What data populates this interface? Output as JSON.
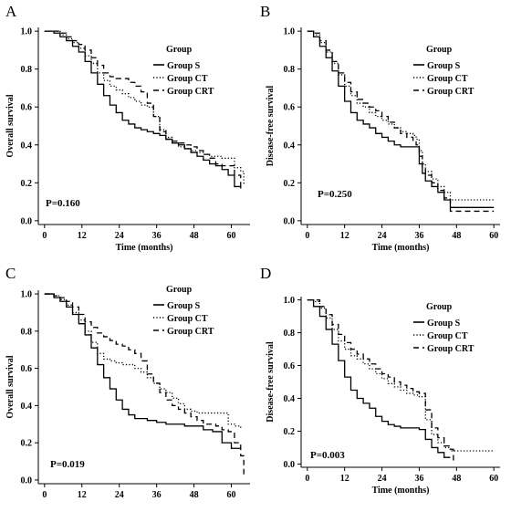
{
  "colors": {
    "line": "#000000",
    "background": "#ffffff"
  },
  "chart_data": [
    {
      "panel": "A",
      "type": "line",
      "xlabel": "Time (months)",
      "ylabel": "Overall survival",
      "xticks": [
        0,
        12,
        24,
        36,
        48,
        60
      ],
      "yticks": [
        "0.0",
        "0.2",
        "0.4",
        "0.6",
        "0.8",
        "1.0"
      ],
      "xlim": [
        -2,
        66
      ],
      "ylim": [
        -0.02,
        1.02
      ],
      "legend_title": "Group",
      "legend_placement": "top-right",
      "p_value": "P=0.160",
      "series": [
        {
          "name": "Group S",
          "style": "solid",
          "x": [
            0,
            3,
            5,
            7,
            9,
            11,
            13,
            15,
            17,
            19,
            21,
            23,
            25,
            27,
            29,
            31,
            33,
            35,
            37,
            39,
            41,
            43,
            45,
            47,
            49,
            51,
            53,
            55,
            57,
            59,
            61,
            63
          ],
          "y": [
            1.0,
            0.99,
            0.97,
            0.95,
            0.92,
            0.89,
            0.84,
            0.78,
            0.72,
            0.66,
            0.61,
            0.57,
            0.53,
            0.51,
            0.49,
            0.48,
            0.47,
            0.46,
            0.45,
            0.43,
            0.41,
            0.4,
            0.38,
            0.36,
            0.34,
            0.32,
            0.3,
            0.29,
            0.27,
            0.24,
            0.18,
            0.17
          ]
        },
        {
          "name": "Group CT",
          "style": "dotted",
          "x": [
            0,
            3,
            5,
            7,
            9,
            11,
            13,
            15,
            17,
            19,
            21,
            23,
            25,
            27,
            29,
            31,
            33,
            35,
            37,
            39,
            41,
            43,
            45,
            47,
            49,
            51,
            53,
            55,
            57,
            59,
            61,
            63,
            64
          ],
          "y": [
            1.0,
            1.0,
            0.98,
            0.96,
            0.94,
            0.91,
            0.87,
            0.83,
            0.78,
            0.74,
            0.71,
            0.69,
            0.67,
            0.65,
            0.63,
            0.61,
            0.6,
            0.55,
            0.48,
            0.44,
            0.41,
            0.39,
            0.38,
            0.37,
            0.36,
            0.35,
            0.34,
            0.34,
            0.33,
            0.33,
            0.28,
            0.26,
            0.19
          ]
        },
        {
          "name": "Group CRT",
          "style": "dashed",
          "x": [
            0,
            3,
            5,
            7,
            9,
            11,
            13,
            15,
            17,
            19,
            21,
            23,
            25,
            27,
            29,
            31,
            33,
            35,
            37,
            39,
            41,
            43,
            45,
            47,
            49,
            51,
            53,
            55,
            57,
            59,
            61,
            63
          ],
          "y": [
            1.0,
            1.0,
            0.99,
            0.97,
            0.95,
            0.93,
            0.9,
            0.86,
            0.82,
            0.78,
            0.76,
            0.75,
            0.75,
            0.73,
            0.71,
            0.68,
            0.62,
            0.55,
            0.47,
            0.43,
            0.42,
            0.41,
            0.4,
            0.39,
            0.37,
            0.35,
            0.33,
            0.3,
            0.29,
            0.29,
            0.24,
            0.17
          ]
        }
      ]
    },
    {
      "panel": "B",
      "type": "line",
      "xlabel": "Time (months)",
      "ylabel": "Disease-free survival",
      "xticks": [
        0,
        12,
        24,
        36,
        48,
        60
      ],
      "yticks": [
        "0.0",
        "0.2",
        "0.4",
        "0.6",
        "0.8",
        "1.0"
      ],
      "xlim": [
        -2,
        62
      ],
      "ylim": [
        -0.02,
        1.02
      ],
      "legend_title": "Group",
      "legend_placement": "top-right",
      "p_value": "P=0.250",
      "series": [
        {
          "name": "Group S",
          "style": "solid",
          "x": [
            0,
            2,
            4,
            6,
            8,
            10,
            12,
            14,
            16,
            18,
            20,
            22,
            24,
            26,
            28,
            30,
            32,
            34,
            35,
            36,
            37,
            38,
            40,
            42,
            44,
            46,
            48,
            50,
            55,
            60
          ],
          "y": [
            1.0,
            0.97,
            0.92,
            0.86,
            0.79,
            0.71,
            0.63,
            0.57,
            0.53,
            0.51,
            0.49,
            0.46,
            0.44,
            0.42,
            0.4,
            0.39,
            0.39,
            0.39,
            0.39,
            0.3,
            0.25,
            0.21,
            0.18,
            0.15,
            0.11,
            0.07,
            0.07,
            0.07,
            0.07,
            0.07
          ]
        },
        {
          "name": "Group CT",
          "style": "dotted",
          "x": [
            0,
            2,
            4,
            6,
            8,
            10,
            12,
            14,
            16,
            18,
            20,
            22,
            24,
            26,
            28,
            30,
            32,
            34,
            35,
            36,
            37,
            38,
            40,
            42,
            44,
            46,
            48,
            50,
            55,
            60
          ],
          "y": [
            1.0,
            0.98,
            0.94,
            0.89,
            0.83,
            0.77,
            0.71,
            0.66,
            0.62,
            0.6,
            0.57,
            0.55,
            0.53,
            0.51,
            0.49,
            0.47,
            0.46,
            0.45,
            0.43,
            0.37,
            0.3,
            0.26,
            0.22,
            0.18,
            0.15,
            0.11,
            0.11,
            0.11,
            0.11,
            0.11
          ]
        },
        {
          "name": "Group CRT",
          "style": "dashed",
          "x": [
            0,
            2,
            4,
            6,
            8,
            10,
            12,
            14,
            16,
            18,
            20,
            22,
            24,
            26,
            28,
            30,
            32,
            34,
            35,
            36,
            37,
            38,
            40,
            42,
            44,
            46,
            48,
            50,
            55,
            60
          ],
          "y": [
            1.0,
            0.99,
            0.95,
            0.9,
            0.84,
            0.78,
            0.73,
            0.68,
            0.64,
            0.62,
            0.6,
            0.58,
            0.55,
            0.52,
            0.49,
            0.46,
            0.44,
            0.42,
            0.4,
            0.34,
            0.28,
            0.24,
            0.2,
            0.16,
            0.12,
            0.05,
            0.05,
            0.05,
            0.05,
            0.05
          ]
        }
      ]
    },
    {
      "panel": "C",
      "type": "line",
      "xlabel": "",
      "ylabel": "Overall survival",
      "xticks": [
        0,
        12,
        24,
        36,
        48,
        60
      ],
      "yticks": [
        "0.0",
        "0.2",
        "0.4",
        "0.6",
        "0.8",
        "1.0"
      ],
      "xlim": [
        -2,
        66
      ],
      "ylim": [
        -0.02,
        1.02
      ],
      "legend_title": "Group",
      "legend_placement": "top-right",
      "p_value": "P=0.019",
      "series": [
        {
          "name": "Group S",
          "style": "solid",
          "x": [
            0,
            3,
            5,
            7,
            9,
            11,
            13,
            15,
            17,
            19,
            21,
            23,
            25,
            27,
            29,
            31,
            33,
            36,
            39,
            42,
            45,
            48,
            51,
            54,
            57,
            60,
            63
          ],
          "y": [
            1.0,
            0.98,
            0.96,
            0.93,
            0.89,
            0.84,
            0.78,
            0.71,
            0.62,
            0.55,
            0.49,
            0.43,
            0.38,
            0.35,
            0.33,
            0.33,
            0.32,
            0.31,
            0.3,
            0.3,
            0.29,
            0.29,
            0.27,
            0.26,
            0.2,
            0.17,
            0.17
          ]
        },
        {
          "name": "Group CT",
          "style": "dotted",
          "x": [
            0,
            3,
            5,
            7,
            9,
            11,
            13,
            15,
            17,
            19,
            21,
            23,
            25,
            27,
            29,
            31,
            33,
            35,
            37,
            39,
            41,
            43,
            45,
            47,
            49,
            51,
            53,
            55,
            57,
            59,
            61,
            63
          ],
          "y": [
            1.0,
            0.99,
            0.97,
            0.94,
            0.9,
            0.86,
            0.8,
            0.74,
            0.68,
            0.65,
            0.64,
            0.63,
            0.62,
            0.62,
            0.6,
            0.58,
            0.55,
            0.52,
            0.49,
            0.47,
            0.44,
            0.41,
            0.38,
            0.37,
            0.36,
            0.36,
            0.36,
            0.36,
            0.36,
            0.3,
            0.29,
            0.28
          ]
        },
        {
          "name": "Group CRT",
          "style": "dashed",
          "x": [
            0,
            3,
            5,
            7,
            9,
            11,
            13,
            15,
            17,
            19,
            21,
            23,
            25,
            27,
            29,
            31,
            33,
            35,
            37,
            39,
            41,
            43,
            45,
            47,
            49,
            51,
            53,
            55,
            57,
            59,
            61,
            63,
            64
          ],
          "y": [
            1.0,
            0.99,
            0.98,
            0.96,
            0.93,
            0.89,
            0.85,
            0.82,
            0.79,
            0.77,
            0.75,
            0.73,
            0.72,
            0.7,
            0.68,
            0.64,
            0.57,
            0.52,
            0.47,
            0.43,
            0.4,
            0.38,
            0.36,
            0.34,
            0.32,
            0.3,
            0.3,
            0.29,
            0.27,
            0.26,
            0.2,
            0.13,
            0.02
          ]
        }
      ]
    },
    {
      "panel": "D",
      "type": "line",
      "xlabel": "Time (months)",
      "ylabel": "Disease-free survival",
      "xticks": [
        0,
        12,
        24,
        36,
        48,
        60
      ],
      "yticks": [
        "0.0",
        "0.2",
        "0.4",
        "0.6",
        "0.8",
        "1.0"
      ],
      "xlim": [
        -2,
        62
      ],
      "ylim": [
        -0.02,
        1.02
      ],
      "legend_title": "Group",
      "legend_placement": "top-right",
      "p_value": "P=0.003",
      "series": [
        {
          "name": "Group S",
          "style": "solid",
          "x": [
            0,
            2,
            4,
            6,
            8,
            10,
            12,
            14,
            16,
            18,
            20,
            22,
            24,
            26,
            28,
            30,
            33,
            36,
            38,
            40,
            42,
            44,
            46
          ],
          "y": [
            1.0,
            0.96,
            0.9,
            0.82,
            0.73,
            0.63,
            0.53,
            0.45,
            0.4,
            0.37,
            0.34,
            0.29,
            0.26,
            0.24,
            0.23,
            0.22,
            0.22,
            0.21,
            0.15,
            0.1,
            0.07,
            0.04,
            0.04
          ]
        },
        {
          "name": "Group CT",
          "style": "dotted",
          "x": [
            0,
            2,
            4,
            6,
            8,
            10,
            12,
            14,
            16,
            18,
            20,
            22,
            24,
            26,
            28,
            30,
            32,
            34,
            36,
            38,
            40,
            42,
            44,
            46,
            48,
            52,
            56,
            60
          ],
          "y": [
            1.0,
            0.99,
            0.95,
            0.89,
            0.82,
            0.75,
            0.7,
            0.66,
            0.64,
            0.61,
            0.58,
            0.55,
            0.52,
            0.49,
            0.47,
            0.45,
            0.43,
            0.42,
            0.41,
            0.27,
            0.18,
            0.13,
            0.1,
            0.08,
            0.08,
            0.08,
            0.08,
            0.08
          ]
        },
        {
          "name": "Group CRT",
          "style": "dashed",
          "x": [
            0,
            2,
            4,
            6,
            8,
            10,
            12,
            14,
            16,
            18,
            20,
            22,
            24,
            26,
            28,
            30,
            32,
            34,
            36,
            38,
            40,
            42,
            44,
            46,
            47
          ],
          "y": [
            1.0,
            1.0,
            0.96,
            0.91,
            0.85,
            0.79,
            0.74,
            0.7,
            0.67,
            0.64,
            0.61,
            0.58,
            0.55,
            0.53,
            0.5,
            0.48,
            0.46,
            0.44,
            0.43,
            0.33,
            0.22,
            0.16,
            0.11,
            0.09,
            0.01
          ]
        }
      ]
    }
  ]
}
